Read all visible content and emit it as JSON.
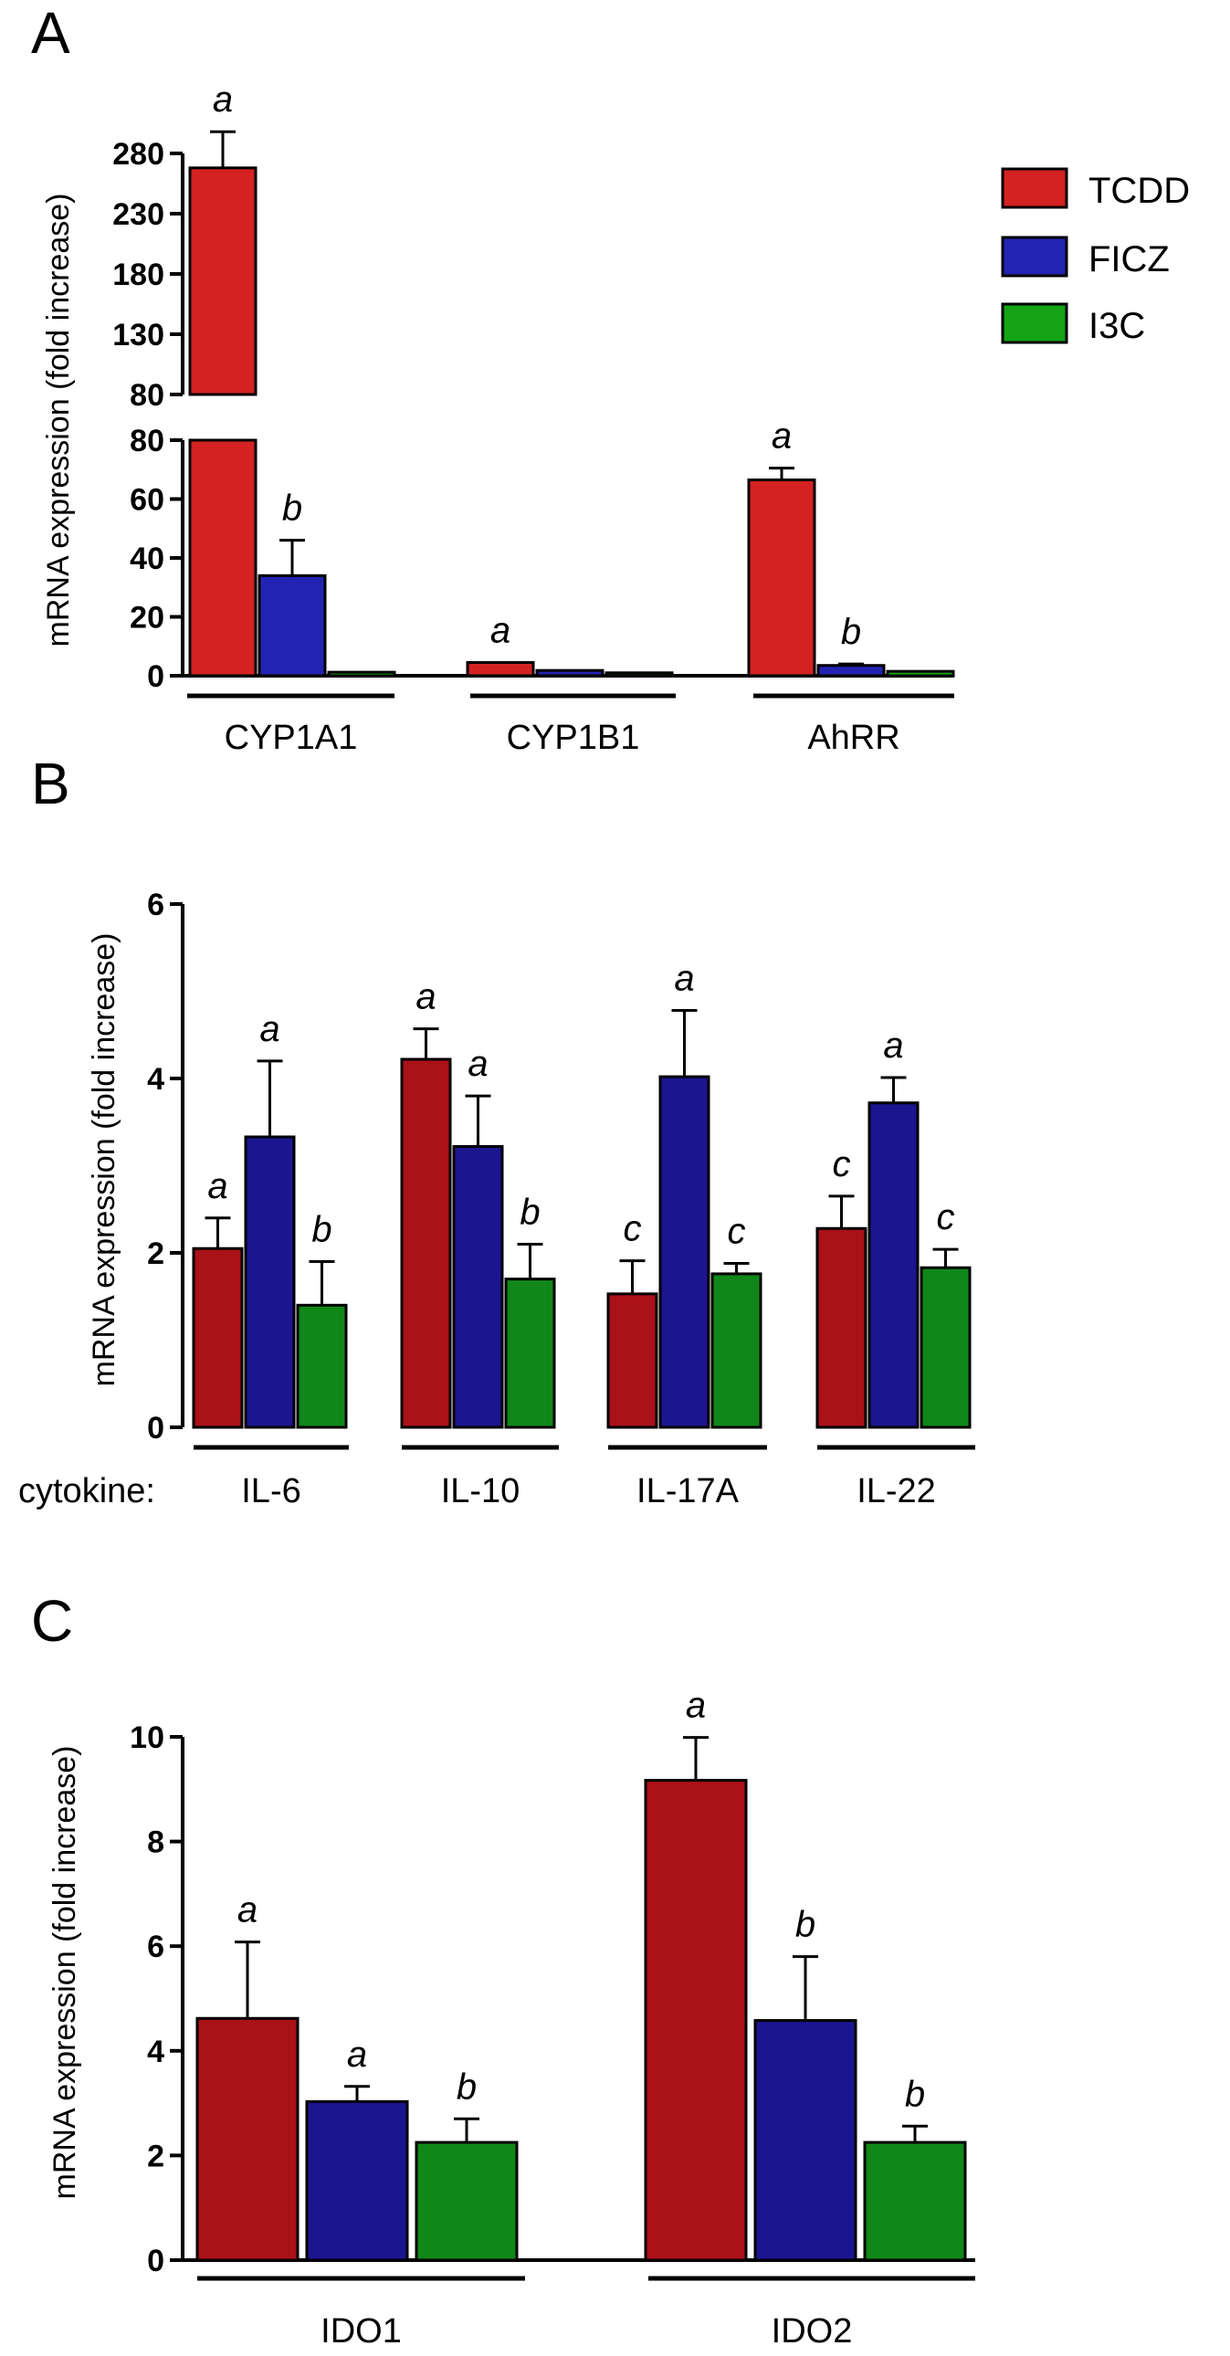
{
  "series": [
    {
      "name": "TCDD",
      "color": "#d42222",
      "color_dark": "#aa1118"
    },
    {
      "name": "FICZ",
      "color": "#2323b2",
      "color_dark": "#1c1590"
    },
    {
      "name": "I3C",
      "color": "#16a316",
      "color_dark": "#11871a"
    }
  ],
  "chart_data": [
    {
      "panel": "A",
      "type": "bar",
      "ylabel": "mRNA expression (fold increase)",
      "categories": [
        "CYP1A1",
        "CYP1B1",
        "AhRR"
      ],
      "broken_axis": true,
      "ylim_lower": [
        0,
        80
      ],
      "yticks_lower": [
        "0",
        "20",
        "40",
        "60",
        "80"
      ],
      "ylim_upper": [
        80,
        280
      ],
      "yticks_upper": [
        "80",
        "130",
        "180",
        "230",
        "280"
      ],
      "series": [
        {
          "name": "TCDD",
          "values": [
            268,
            4.5,
            66.5
          ],
          "errors": [
            30,
            0,
            4
          ],
          "labels": [
            "a",
            "a",
            "a"
          ]
        },
        {
          "name": "FICZ",
          "values": [
            34,
            1.8,
            3.5
          ],
          "errors": [
            12,
            0,
            0.5
          ],
          "labels": [
            "b",
            "",
            "b"
          ]
        },
        {
          "name": "I3C",
          "values": [
            1.2,
            1.0,
            1.5
          ],
          "errors": [
            0,
            0,
            0
          ],
          "labels": [
            "",
            "",
            ""
          ]
        }
      ],
      "legend": [
        "TCDD",
        "FICZ",
        "I3C"
      ]
    },
    {
      "panel": "B",
      "type": "bar",
      "ylabel": "mRNA expression (fold increase)",
      "row_label": "cytokine:",
      "categories": [
        "IL-6",
        "IL-10",
        "IL-17A",
        "IL-22"
      ],
      "ylim": [
        0,
        6
      ],
      "yticks": [
        "0",
        "2",
        "4",
        "6"
      ],
      "series": [
        {
          "name": "TCDD",
          "values": [
            2.05,
            4.22,
            1.53,
            2.28
          ],
          "errors": [
            0.35,
            0.35,
            0.38,
            0.37
          ],
          "labels": [
            "a",
            "a",
            "c",
            "c"
          ]
        },
        {
          "name": "FICZ",
          "values": [
            3.33,
            3.22,
            4.02,
            3.72
          ],
          "errors": [
            0.87,
            0.58,
            0.76,
            0.29
          ],
          "labels": [
            "a",
            "a",
            "a",
            "a"
          ]
        },
        {
          "name": "I3C",
          "values": [
            1.4,
            1.7,
            1.76,
            1.83
          ],
          "errors": [
            0.5,
            0.4,
            0.12,
            0.21
          ],
          "labels": [
            "b",
            "b",
            "c",
            "c"
          ]
        }
      ]
    },
    {
      "panel": "C",
      "type": "bar",
      "ylabel": "mRNA expression (fold increase)",
      "categories": [
        "IDO1",
        "IDO2"
      ],
      "ylim": [
        0,
        10
      ],
      "yticks": [
        "0",
        "2",
        "4",
        "6",
        "8",
        "10"
      ],
      "series": [
        {
          "name": "TCDD",
          "values": [
            4.62,
            9.17
          ],
          "errors": [
            1.46,
            0.82
          ],
          "labels": [
            "a",
            "a"
          ]
        },
        {
          "name": "FICZ",
          "values": [
            3.03,
            4.58
          ],
          "errors": [
            0.29,
            1.22
          ],
          "labels": [
            "a",
            "b"
          ]
        },
        {
          "name": "I3C",
          "values": [
            2.25,
            2.25
          ],
          "errors": [
            0.45,
            0.31
          ],
          "labels": [
            "b",
            "b"
          ]
        }
      ]
    }
  ]
}
